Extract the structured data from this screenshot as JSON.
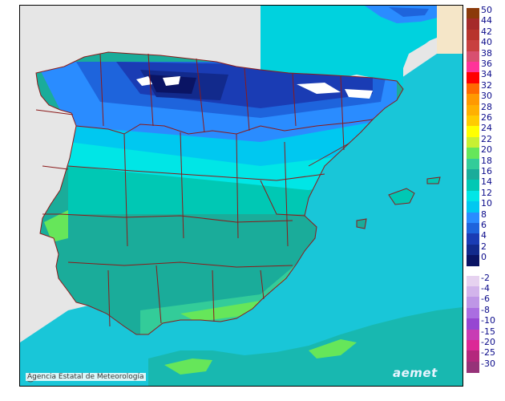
{
  "map": {
    "credit": "Agencia Estatal de Meteorología",
    "copyright_symbol": "C",
    "brand": "aemet",
    "colors": {
      "sea_west_bg": "#e6e6e6",
      "sea_warm": "#18b8b0",
      "sea_cold": "#19c6d8",
      "france": "#00d2de",
      "border_line": "#8b1a1a"
    }
  },
  "legend": {
    "positive": [
      {
        "label": "50",
        "color": "#8b3a0a"
      },
      {
        "label": "44",
        "color": "#a52a2a"
      },
      {
        "label": "42",
        "color": "#b8342c"
      },
      {
        "label": "40",
        "color": "#c84040"
      },
      {
        "label": "38",
        "color": "#d85070"
      },
      {
        "label": "36",
        "color": "#ff3399"
      },
      {
        "label": "34",
        "color": "#ff0000"
      },
      {
        "label": "32",
        "color": "#ff6a00"
      },
      {
        "label": "30",
        "color": "#ff9900"
      },
      {
        "label": "28",
        "color": "#ffb000"
      },
      {
        "label": "26",
        "color": "#ffcc00"
      },
      {
        "label": "24",
        "color": "#ffff00"
      },
      {
        "label": "22",
        "color": "#c8f032"
      },
      {
        "label": "20",
        "color": "#66e65a"
      },
      {
        "label": "18",
        "color": "#33cc99"
      },
      {
        "label": "16",
        "color": "#1aac9a"
      },
      {
        "label": "14",
        "color": "#00c8b4"
      },
      {
        "label": "12",
        "color": "#00e6e6"
      },
      {
        "label": "10",
        "color": "#00c8f0"
      },
      {
        "label": "8",
        "color": "#2a8cff"
      },
      {
        "label": "6",
        "color": "#1e64dc"
      },
      {
        "label": "4",
        "color": "#1a3cb4"
      },
      {
        "label": "2",
        "color": "#122a8c"
      },
      {
        "label": "0",
        "color": "#0a1464"
      }
    ],
    "negative": [
      {
        "label": "-2",
        "color": "#e6d2f0"
      },
      {
        "label": "-4",
        "color": "#d2b4eb"
      },
      {
        "label": "-6",
        "color": "#be96e6"
      },
      {
        "label": "-8",
        "color": "#aa6ee1"
      },
      {
        "label": "-10",
        "color": "#9646d2"
      },
      {
        "label": "-15",
        "color": "#c83cb4"
      },
      {
        "label": "-20",
        "color": "#dc2896"
      },
      {
        "label": "-25",
        "color": "#b4287d"
      },
      {
        "label": "-30",
        "color": "#963278"
      }
    ]
  }
}
